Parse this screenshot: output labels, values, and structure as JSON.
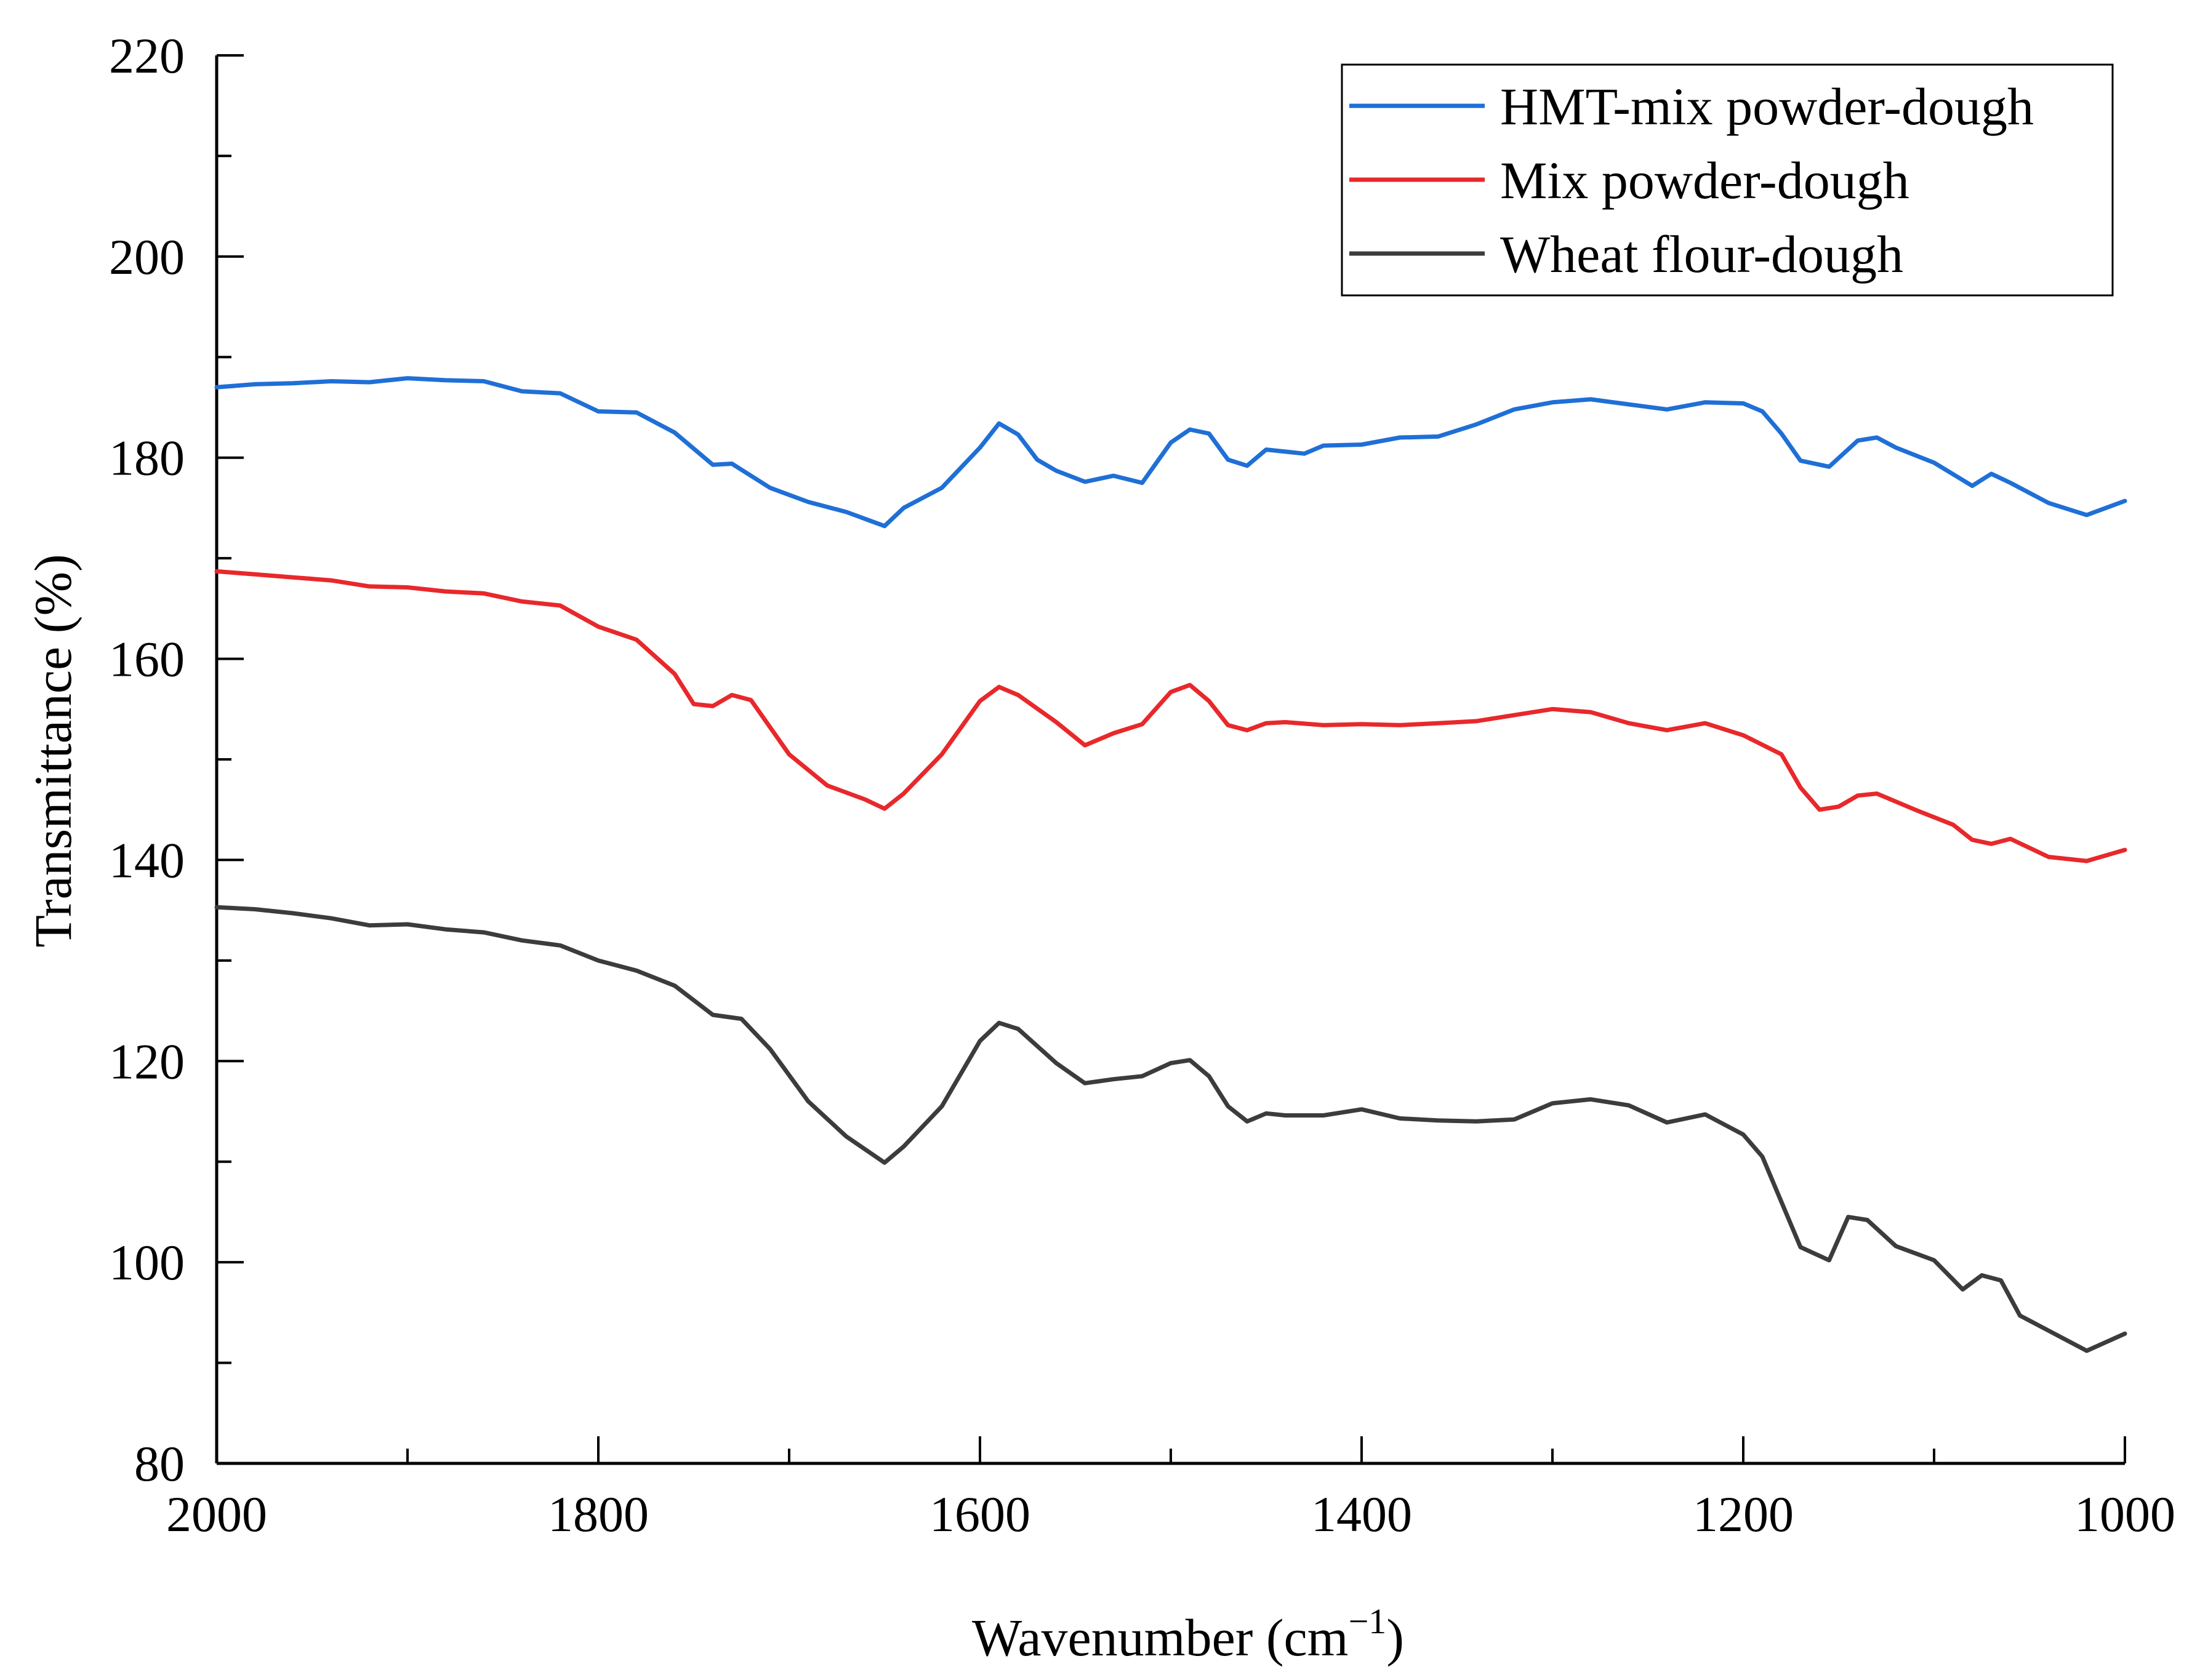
{
  "chart_data": {
    "type": "line",
    "title": "",
    "xlabel": "Wavenumber (cm",
    "xlabel_superscript": "−1",
    "xlabel_close": ")",
    "ylabel": "Transmittance (%)",
    "xlim": [
      2000,
      1000
    ],
    "ylim": [
      80,
      220
    ],
    "x_reversed": true,
    "x_ticks": [
      "2000",
      "1800",
      "1600",
      "1400",
      "1200",
      "1000"
    ],
    "y_ticks": [
      "80",
      "100",
      "120",
      "140",
      "160",
      "180",
      "200",
      "220"
    ],
    "grid": false,
    "legend_position": "top-right",
    "series": [
      {
        "name": "HMT-mix powder-dough",
        "color": "#1f6fd6",
        "x": [
          2000,
          1980,
          1960,
          1940,
          1920,
          1900,
          1880,
          1860,
          1840,
          1820,
          1800,
          1780,
          1760,
          1740,
          1730,
          1710,
          1690,
          1670,
          1650,
          1640,
          1620,
          1600,
          1590,
          1580,
          1570,
          1560,
          1545,
          1530,
          1515,
          1500,
          1490,
          1480,
          1470,
          1460,
          1450,
          1440,
          1430,
          1420,
          1400,
          1380,
          1360,
          1340,
          1320,
          1300,
          1280,
          1260,
          1240,
          1220,
          1200,
          1190,
          1180,
          1170,
          1155,
          1140,
          1130,
          1120,
          1100,
          1080,
          1070,
          1060,
          1040,
          1020,
          1000
        ],
        "y": [
          187,
          187.3,
          187.4,
          187.6,
          187.5,
          187.9,
          187.7,
          187.6,
          186.6,
          186.4,
          184.6,
          184.5,
          182.5,
          179.3,
          179.4,
          177,
          175.6,
          174.6,
          173.2,
          175,
          177,
          181,
          183.4,
          182.3,
          179.8,
          178.7,
          177.6,
          178.2,
          177.5,
          181.5,
          182.8,
          182.4,
          179.8,
          179.2,
          180.8,
          180.6,
          180.4,
          181.2,
          181.3,
          182,
          182.1,
          183.3,
          184.8,
          185.5,
          185.8,
          185.3,
          184.8,
          185.5,
          185.4,
          184.6,
          182.4,
          179.7,
          179.1,
          181.7,
          182,
          181,
          179.5,
          177.2,
          178.4,
          177.5,
          175.5,
          174.3,
          175.7
        ]
      },
      {
        "name": "Mix powder-dough",
        "color": "#e8282b",
        "x": [
          2000,
          1980,
          1960,
          1940,
          1920,
          1900,
          1880,
          1860,
          1840,
          1820,
          1800,
          1780,
          1760,
          1750,
          1740,
          1730,
          1720,
          1700,
          1680,
          1660,
          1650,
          1640,
          1620,
          1600,
          1590,
          1580,
          1560,
          1545,
          1530,
          1515,
          1500,
          1490,
          1480,
          1470,
          1460,
          1450,
          1440,
          1420,
          1400,
          1380,
          1360,
          1340,
          1320,
          1300,
          1280,
          1260,
          1240,
          1220,
          1200,
          1180,
          1170,
          1160,
          1150,
          1140,
          1130,
          1110,
          1090,
          1080,
          1070,
          1060,
          1040,
          1020,
          1000
        ],
        "y": [
          168.7,
          168.4,
          168.1,
          167.8,
          167.2,
          167.1,
          166.7,
          166.5,
          165.7,
          165.3,
          163.2,
          161.9,
          158.5,
          155.5,
          155.3,
          156.4,
          155.9,
          150.5,
          147.4,
          146,
          145.1,
          146.6,
          150.5,
          155.8,
          157.2,
          156.4,
          153.7,
          151.4,
          152.6,
          153.5,
          156.7,
          157.4,
          155.8,
          153.4,
          152.9,
          153.6,
          153.7,
          153.4,
          153.5,
          153.4,
          153.6,
          153.8,
          154.4,
          155,
          154.7,
          153.6,
          152.9,
          153.6,
          152.4,
          150.5,
          147.2,
          145,
          145.3,
          146.4,
          146.6,
          145,
          143.5,
          142,
          141.6,
          142.1,
          140.3,
          139.9,
          141
        ]
      },
      {
        "name": "Wheat flour-dough",
        "color": "#3c3c3c",
        "x": [
          2000,
          1980,
          1960,
          1940,
          1920,
          1900,
          1880,
          1860,
          1840,
          1820,
          1800,
          1780,
          1760,
          1740,
          1725,
          1710,
          1690,
          1670,
          1650,
          1640,
          1620,
          1600,
          1590,
          1580,
          1570,
          1560,
          1545,
          1530,
          1515,
          1500,
          1490,
          1480,
          1470,
          1460,
          1450,
          1440,
          1420,
          1400,
          1380,
          1360,
          1340,
          1320,
          1300,
          1280,
          1260,
          1240,
          1220,
          1200,
          1190,
          1180,
          1170,
          1155,
          1145,
          1135,
          1120,
          1100,
          1085,
          1075,
          1065,
          1055,
          1040,
          1020,
          1000
        ],
        "y": [
          135.3,
          135.1,
          134.7,
          134.2,
          133.5,
          133.6,
          133.1,
          132.8,
          132,
          131.5,
          130,
          129,
          127.5,
          124.6,
          124.2,
          121.2,
          116,
          112.5,
          109.9,
          111.5,
          115.5,
          122,
          123.8,
          123.2,
          121.5,
          119.8,
          117.8,
          118.2,
          118.5,
          119.8,
          120.1,
          118.5,
          115.5,
          114,
          114.8,
          114.6,
          114.6,
          115.2,
          114.3,
          114.1,
          114,
          114.2,
          115.8,
          116.2,
          115.6,
          113.9,
          114.7,
          112.7,
          110.5,
          106,
          101.5,
          100.2,
          104.5,
          104.2,
          101.6,
          100.2,
          97.3,
          98.7,
          98.2,
          94.7,
          93.2,
          91.2,
          92.9
        ]
      }
    ]
  }
}
